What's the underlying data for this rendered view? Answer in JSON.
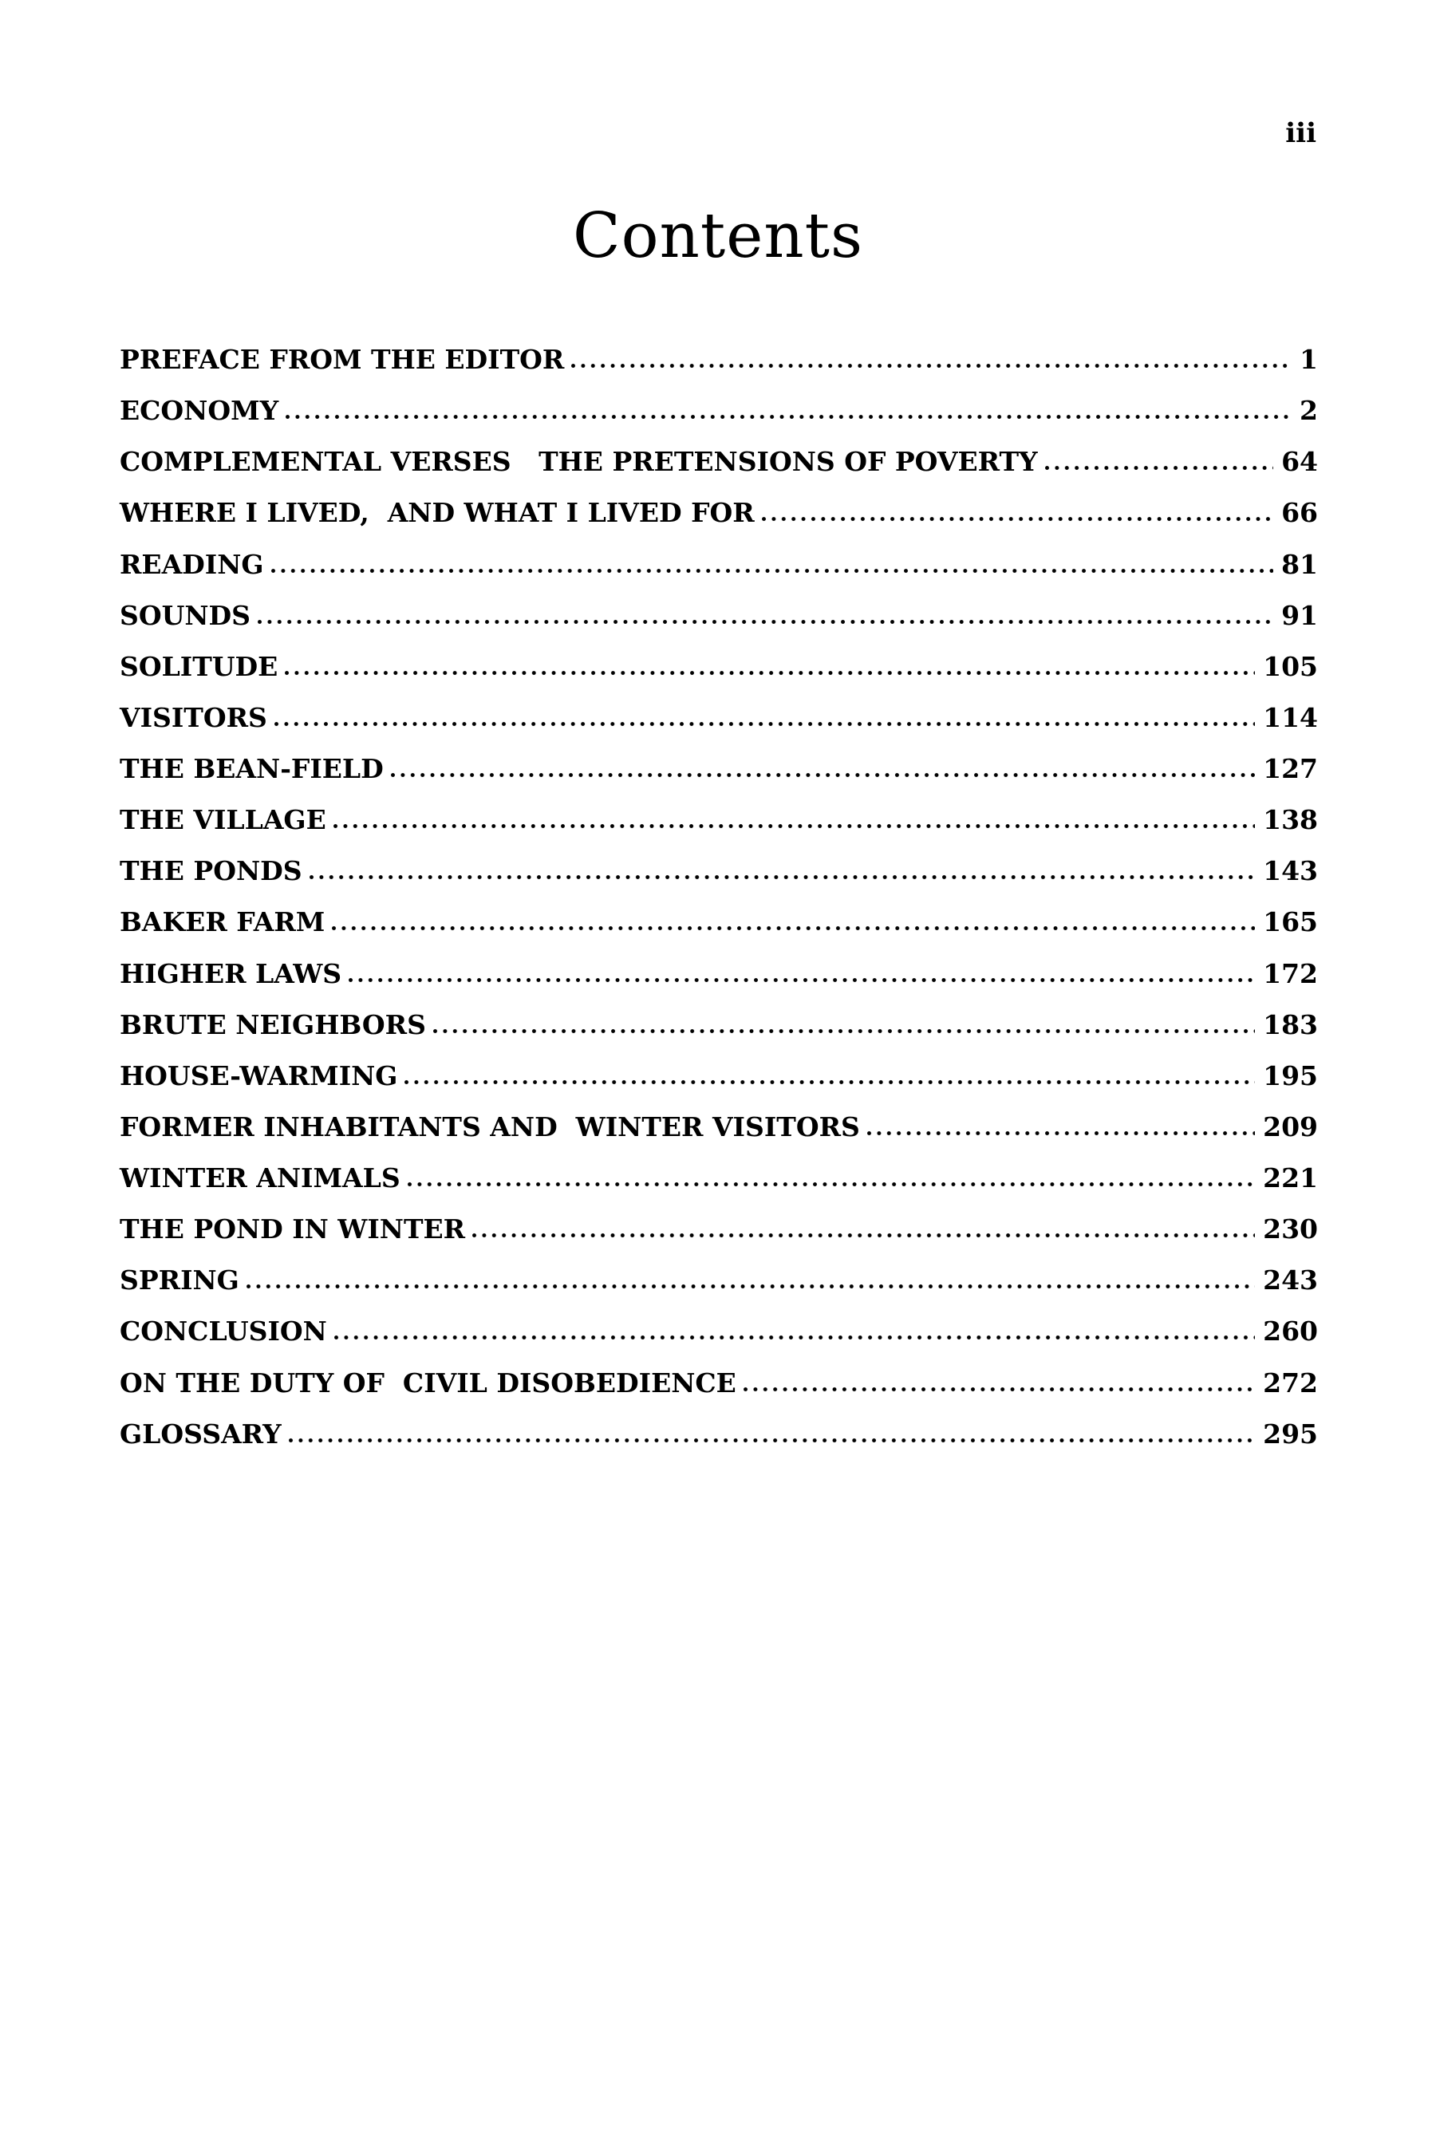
{
  "page": {
    "folio": "iii",
    "title": "Contents",
    "text_color": "#000000",
    "background_color": "#ffffff"
  },
  "toc": {
    "entries": [
      {
        "title": "PREFACE FROM THE EDITOR",
        "page": "1"
      },
      {
        "title": "ECONOMY",
        "page": "2"
      },
      {
        "title": "COMPLEMENTAL VERSES   THE PRETENSIONS OF POVERTY",
        "page": "64"
      },
      {
        "title": "WHERE I LIVED,  AND WHAT I LIVED FOR",
        "page": "66"
      },
      {
        "title": "READING",
        "page": "81"
      },
      {
        "title": "SOUNDS",
        "page": "91"
      },
      {
        "title": "SOLITUDE",
        "page": "105"
      },
      {
        "title": "VISITORS",
        "page": "114"
      },
      {
        "title": "THE BEAN-FIELD",
        "page": "127"
      },
      {
        "title": "THE VILLAGE",
        "page": "138"
      },
      {
        "title": "THE PONDS",
        "page": "143"
      },
      {
        "title": "BAKER FARM",
        "page": "165"
      },
      {
        "title": "HIGHER LAWS",
        "page": "172"
      },
      {
        "title": "BRUTE NEIGHBORS",
        "page": "183"
      },
      {
        "title": "HOUSE-WARMING",
        "page": "195"
      },
      {
        "title": "FORMER INHABITANTS AND  WINTER VISITORS",
        "page": "209"
      },
      {
        "title": "WINTER ANIMALS",
        "page": "221"
      },
      {
        "title": "THE POND IN WINTER",
        "page": "230"
      },
      {
        "title": "SPRING",
        "page": "243"
      },
      {
        "title": "CONCLUSION",
        "page": "260"
      },
      {
        "title": "ON THE DUTY OF  CIVIL DISOBEDIENCE",
        "page": "272"
      },
      {
        "title": "GLOSSARY",
        "page": "295"
      }
    ]
  }
}
